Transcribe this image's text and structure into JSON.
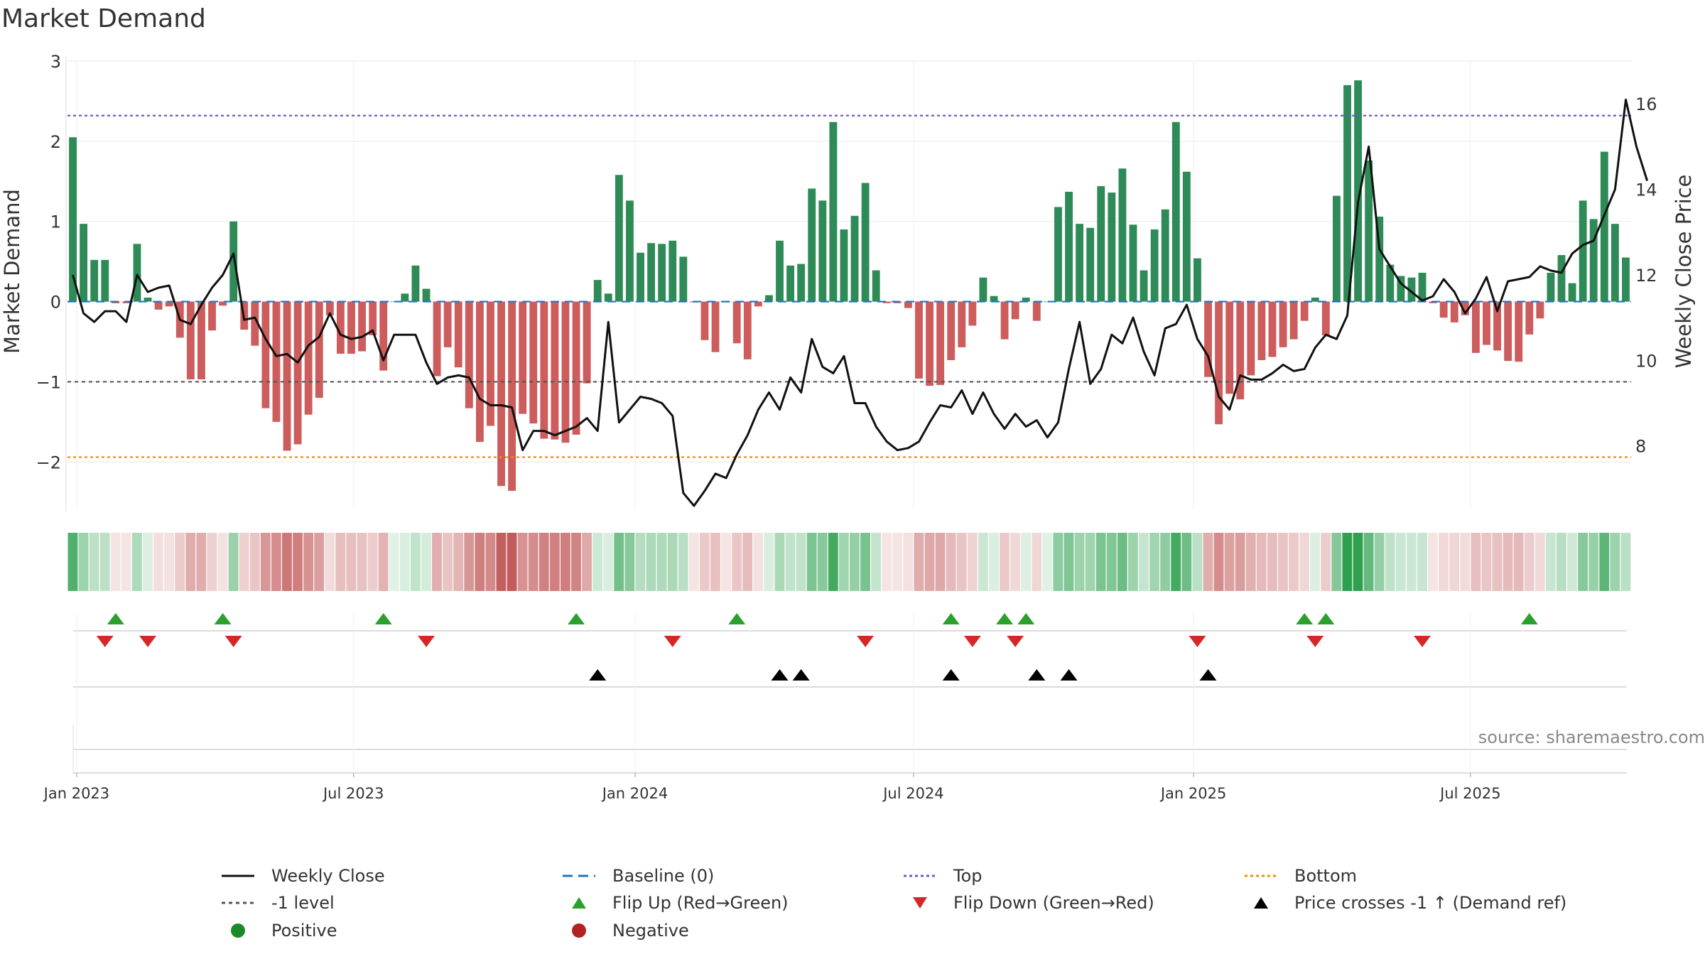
{
  "chart_data": {
    "type": "bar",
    "title": "Market Demand",
    "source_label": "source: sharemaestro.com",
    "ylabel": "Market Demand",
    "y2label": "Weekly Close Price",
    "ylim": [
      -2.6,
      3.0
    ],
    "y2lim": [
      6.5,
      17.0
    ],
    "yticks": [
      3,
      2,
      1,
      0,
      -1,
      -2
    ],
    "ytick_labels": [
      "3",
      "2",
      "1",
      "0",
      "−1",
      "−2"
    ],
    "y2ticks": [
      16,
      14,
      12,
      10,
      8
    ],
    "y2tick_labels": [
      "16",
      "14",
      "12",
      "10",
      "8"
    ],
    "x_start": "2022-12-26",
    "x_end": "2025-09-29",
    "xticks": [
      {
        "label": "Jan 2023",
        "week": 0.857
      },
      {
        "label": "Jul 2023",
        "week": 26.714
      },
      {
        "label": "Jan 2024",
        "week": 53.0
      },
      {
        "label": "Jul 2024",
        "week": 79.0
      },
      {
        "label": "Jan 2025",
        "week": 105.143
      },
      {
        "label": "Jul 2025",
        "week": 131.0
      }
    ],
    "levels": {
      "top": 2.32,
      "bottom": -1.94,
      "minus_one": -1.0,
      "baseline": 0
    },
    "series": [
      {
        "name": "Market Demand",
        "values": [
          2.05,
          0.97,
          0.52,
          0.52,
          -0.02,
          -0.02,
          0.72,
          0.05,
          -0.1,
          -0.06,
          -0.45,
          -0.97,
          -0.97,
          -0.36,
          -0.05,
          1.0,
          -0.35,
          -0.55,
          -1.33,
          -1.5,
          -1.86,
          -1.78,
          -1.41,
          -1.2,
          -0.17,
          -0.65,
          -0.65,
          -0.62,
          -0.42,
          -0.86,
          0.0,
          0.1,
          0.45,
          0.16,
          -0.93,
          -0.57,
          -0.82,
          -1.33,
          -1.75,
          -1.55,
          -2.3,
          -2.36,
          -1.4,
          -1.52,
          -1.71,
          -1.72,
          -1.76,
          -1.66,
          -1.02,
          0.27,
          0.1,
          1.58,
          1.26,
          0.61,
          0.73,
          0.72,
          0.76,
          0.56,
          -0.01,
          -0.48,
          -0.63,
          -0.01,
          -0.52,
          -0.72,
          -0.06,
          0.08,
          0.76,
          0.45,
          0.47,
          1.41,
          1.26,
          2.24,
          0.9,
          1.07,
          1.48,
          0.39,
          -0.02,
          -0.02,
          -0.08,
          -0.96,
          -1.05,
          -1.04,
          -0.73,
          -0.57,
          -0.3,
          0.3,
          0.07,
          -0.47,
          -0.22,
          0.05,
          -0.24,
          0.0,
          1.18,
          1.37,
          0.97,
          0.92,
          1.44,
          1.36,
          1.66,
          0.96,
          0.39,
          0.9,
          1.15,
          2.24,
          1.62,
          0.54,
          -0.94,
          -1.53,
          -1.15,
          -1.22,
          -0.92,
          -0.73,
          -0.69,
          -0.57,
          -0.47,
          -0.24,
          0.05,
          -0.42,
          1.32,
          2.7,
          2.76,
          1.76,
          1.06,
          0.46,
          0.32,
          0.3,
          0.36,
          -0.02,
          -0.2,
          -0.26,
          -0.17,
          -0.64,
          -0.54,
          -0.61,
          -0.74,
          -0.75,
          -0.41,
          -0.21,
          0.36,
          0.58,
          0.23,
          1.26,
          1.03,
          1.87,
          0.97,
          0.55
        ]
      },
      {
        "name": "Weekly Close",
        "values": [
          12.0,
          11.1,
          10.9,
          11.15,
          11.15,
          10.9,
          12.0,
          11.6,
          11.7,
          11.75,
          10.95,
          10.85,
          11.3,
          11.7,
          12.0,
          12.5,
          10.95,
          11.0,
          10.5,
          10.1,
          10.15,
          9.95,
          10.35,
          10.55,
          11.1,
          10.6,
          10.5,
          10.55,
          10.7,
          10.0,
          10.6,
          10.6,
          10.6,
          9.95,
          9.45,
          9.6,
          9.65,
          9.6,
          9.1,
          8.95,
          8.95,
          8.9,
          7.9,
          8.35,
          8.35,
          8.25,
          8.35,
          8.45,
          8.65,
          8.35,
          10.9,
          8.55,
          8.85,
          9.15,
          9.1,
          9.0,
          8.7,
          6.9,
          6.6,
          6.95,
          7.35,
          7.25,
          7.8,
          8.25,
          8.85,
          9.25,
          8.85,
          9.6,
          9.25,
          10.5,
          9.85,
          9.7,
          10.1,
          9.0,
          9.0,
          8.45,
          8.1,
          7.9,
          7.95,
          8.1,
          8.55,
          8.95,
          8.9,
          9.3,
          8.75,
          9.25,
          8.75,
          8.4,
          8.75,
          8.45,
          8.6,
          8.2,
          8.55,
          9.8,
          10.9,
          9.45,
          9.8,
          10.6,
          10.4,
          11.0,
          10.2,
          9.65,
          10.75,
          10.85,
          11.3,
          10.5,
          10.1,
          9.15,
          8.85,
          9.65,
          9.55,
          9.55,
          9.7,
          9.9,
          9.75,
          9.8,
          10.3,
          10.6,
          10.5,
          11.05,
          13.7,
          15.0,
          12.6,
          12.2,
          11.8,
          11.6,
          11.4,
          11.5,
          11.9,
          11.6,
          11.1,
          11.45,
          11.95,
          11.15,
          11.85,
          11.9,
          11.95,
          12.2,
          12.1,
          12.05,
          12.5,
          12.7,
          12.8,
          13.4,
          14.0,
          16.1,
          15.0,
          14.2
        ]
      }
    ],
    "flip_up_weeks": [
      4,
      14,
      29,
      47,
      62,
      82,
      87,
      89,
      115,
      117,
      136
    ],
    "flip_down_weeks": [
      3,
      7,
      15,
      33,
      56,
      74,
      84,
      88,
      105,
      116,
      126
    ],
    "price_cross_weeks": [
      49,
      66,
      68,
      82,
      90,
      93,
      106
    ],
    "legend": [
      {
        "key": "weekly_close",
        "label": "Weekly Close",
        "color": "#111111"
      },
      {
        "key": "baseline",
        "label": "Baseline (0)",
        "color": "#1f77b4"
      },
      {
        "key": "top",
        "label": "Top",
        "color": "#6a5acd"
      },
      {
        "key": "bottom",
        "label": "Bottom",
        "color": "#e69500"
      },
      {
        "key": "minus_one",
        "label": "-1 level",
        "color": "#555555"
      },
      {
        "key": "flip_up",
        "label": "Flip Up (Red→Green)",
        "color": "#2ca02c"
      },
      {
        "key": "flip_down",
        "label": "Flip Down (Green→Red)",
        "color": "#d62728"
      },
      {
        "key": "price_cross",
        "label": "Price crosses -1 ↑ (Demand ref)",
        "color": "#000000"
      },
      {
        "key": "positive",
        "label": "Positive",
        "color": "#1a8a2a"
      },
      {
        "key": "negative",
        "label": "Negative",
        "color": "#b22222"
      }
    ],
    "colors": {
      "positive_bar": "#2e8b57",
      "negative_bar": "#cd5c5c",
      "grid": "#e8e8e8"
    }
  }
}
